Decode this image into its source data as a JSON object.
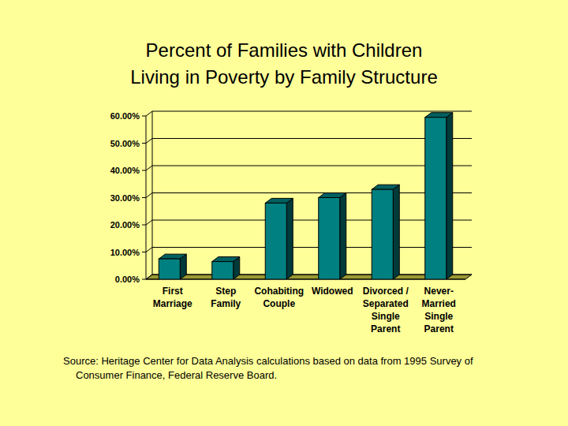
{
  "chart_data": {
    "type": "bar",
    "title": "Percent of Families with Children\nLiving in Poverty by Family Structure",
    "categories": [
      "First\nMarriage",
      "Step\nFamily",
      "Cohabiting\nCouple",
      "Widowed",
      "Divorced /\nSeparated\nSingle\nParent",
      "Never-\nMarried\nSingle\nParent"
    ],
    "values": [
      7.5,
      6.5,
      28,
      30,
      33,
      59.5
    ],
    "color": "#008080",
    "ylim": [
      0,
      60
    ],
    "yticks": [
      {
        "value": 0,
        "label": "0.00%"
      },
      {
        "value": 10,
        "label": "10.00%"
      },
      {
        "value": 20,
        "label": "20.00%"
      },
      {
        "value": 30,
        "label": "30.00%"
      },
      {
        "value": 40,
        "label": "40.00%"
      },
      {
        "value": 50,
        "label": "50.00%"
      },
      {
        "value": 60,
        "label": "60.00%"
      }
    ],
    "grid": true,
    "source": "Source: Heritage Center for Data Analysis calculations based on data from 1995 Survey of Consumer Finance, Federal Reserve Board."
  }
}
